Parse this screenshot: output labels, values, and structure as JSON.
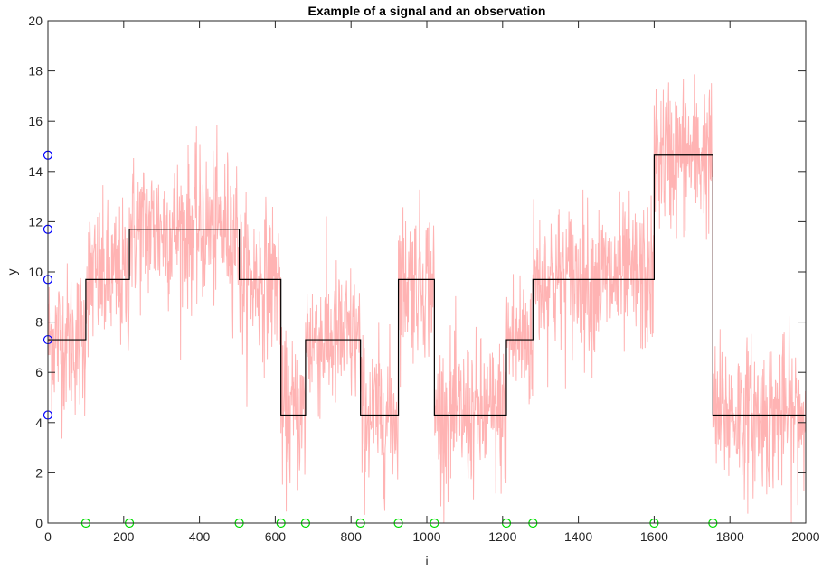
{
  "chart_data": {
    "type": "line",
    "title": "Example of a signal and an observation",
    "xlabel": "i",
    "ylabel": "y",
    "xlim": [
      0,
      2000
    ],
    "ylim": [
      0,
      20
    ],
    "x_ticks": [
      0,
      200,
      400,
      600,
      800,
      1000,
      1200,
      1400,
      1600,
      1800,
      2000
    ],
    "y_ticks": [
      0,
      2,
      4,
      6,
      8,
      10,
      12,
      14,
      16,
      18,
      20
    ],
    "grid": false,
    "legend": "none",
    "colors": {
      "observation": "#ffb3b3",
      "signal": "#000000",
      "levels": "#0000ff",
      "changepoints": "#00dd00"
    },
    "series": [
      {
        "type": "noisy-line",
        "segments": [
          {
            "x0": 0,
            "x1": 100,
            "mean": 7.3
          },
          {
            "x0": 100,
            "x1": 215,
            "mean": 9.7
          },
          {
            "x0": 215,
            "x1": 505,
            "mean": 11.7
          },
          {
            "x0": 505,
            "x1": 615,
            "mean": 9.7
          },
          {
            "x0": 615,
            "x1": 680,
            "mean": 4.3
          },
          {
            "x0": 680,
            "x1": 825,
            "mean": 7.3
          },
          {
            "x0": 825,
            "x1": 925,
            "mean": 4.3
          },
          {
            "x0": 925,
            "x1": 1020,
            "mean": 9.7
          },
          {
            "x0": 1020,
            "x1": 1210,
            "mean": 4.3
          },
          {
            "x0": 1210,
            "x1": 1280,
            "mean": 7.3
          },
          {
            "x0": 1280,
            "x1": 1600,
            "mean": 9.7
          },
          {
            "x0": 1600,
            "x1": 1755,
            "mean": 14.65
          },
          {
            "x0": 1755,
            "x1": 2000,
            "mean": 4.3
          }
        ]
      },
      {
        "type": "step",
        "breakpoints": [
          0,
          100,
          215,
          505,
          615,
          680,
          825,
          925,
          1020,
          1210,
          1280,
          1600,
          1755,
          2000
        ],
        "values": [
          7.3,
          9.7,
          11.7,
          9.7,
          4.3,
          7.3,
          4.3,
          9.7,
          4.3,
          7.3,
          9.7,
          14.65,
          4.3
        ]
      },
      {
        "type": "scatter",
        "marker": "circle",
        "x": [
          0,
          0,
          0,
          0,
          0
        ],
        "y": [
          4.3,
          7.3,
          9.7,
          11.7,
          14.65
        ]
      },
      {
        "type": "scatter",
        "marker": "circle",
        "x": [
          100,
          215,
          505,
          615,
          680,
          825,
          925,
          1020,
          1210,
          1280,
          1600,
          1755
        ],
        "y": [
          0,
          0,
          0,
          0,
          0,
          0,
          0,
          0,
          0,
          0,
          0,
          0
        ]
      }
    ]
  }
}
